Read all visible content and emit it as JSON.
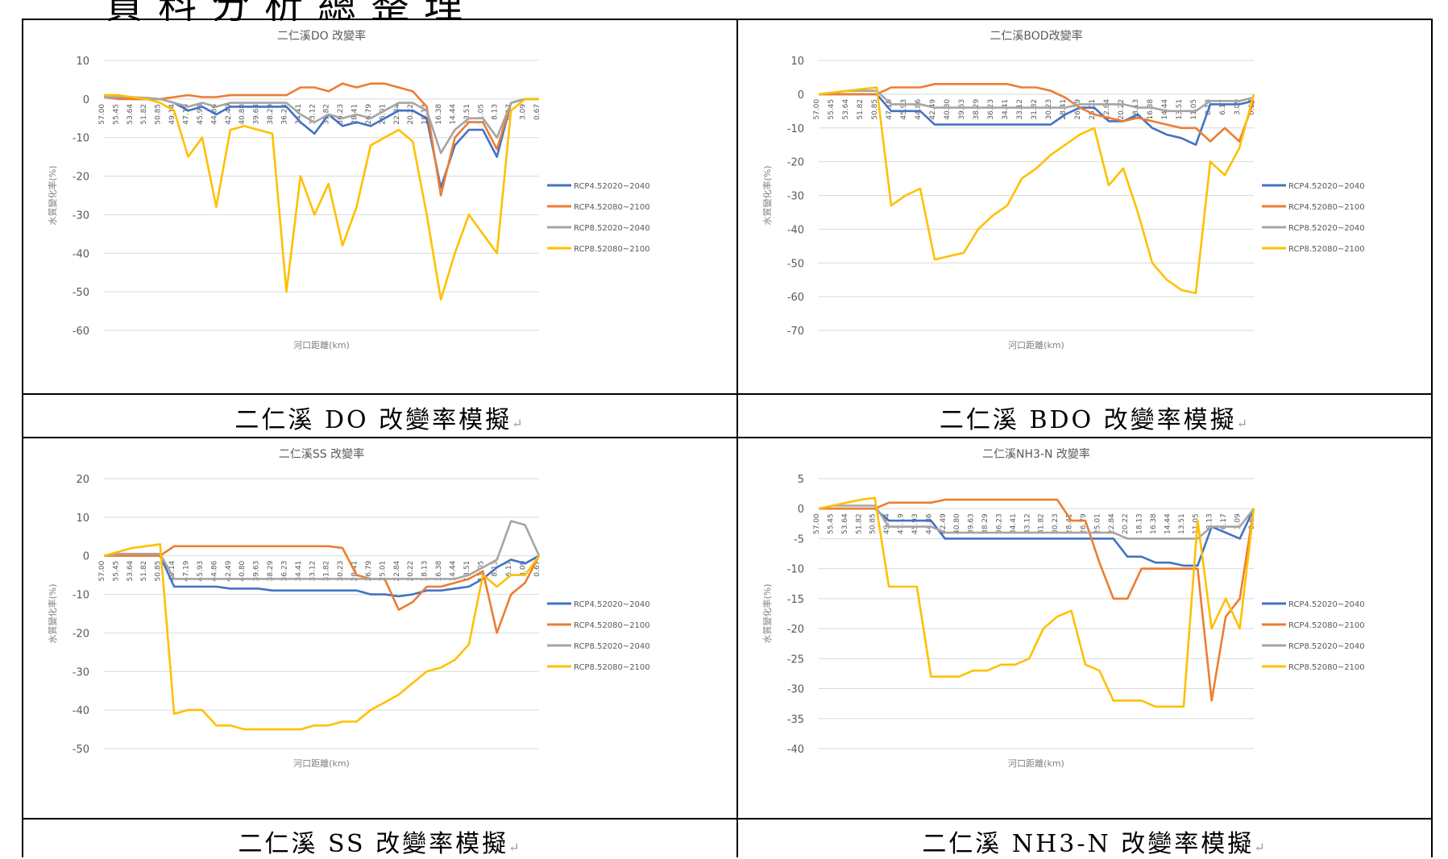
{
  "header_text": "資料分析總整理",
  "charts": [
    {
      "id": "do",
      "title": "二仁溪DO 改變率",
      "ylabel": "水質變化率(%)",
      "xlabel": "河口距離(km)",
      "caption": "二仁溪 DO 改變率模擬",
      "ylim": [
        -60,
        10
      ],
      "yticks": [
        10,
        0,
        -10,
        -20,
        -30,
        -40,
        -50,
        -60
      ]
    },
    {
      "id": "bod",
      "title": "二仁溪BOD改變率",
      "ylabel": "水質變化率(%)",
      "xlabel": "河口距離(km)",
      "caption": "二仁溪 BDO 改變率模擬",
      "ylim": [
        -70,
        10
      ],
      "yticks": [
        10,
        0,
        -10,
        -20,
        -30,
        -40,
        -50,
        -60,
        -70
      ]
    },
    {
      "id": "ss",
      "title": "二仁溪SS 改變率",
      "ylabel": "水質變化率(%)",
      "xlabel": "河口距離(km)",
      "caption": "二仁溪 SS 改變率模擬",
      "ylim": [
        -50,
        20
      ],
      "yticks": [
        20,
        10,
        0,
        -10,
        -20,
        -30,
        -40,
        -50
      ]
    },
    {
      "id": "nh3",
      "title": "二仁溪NH3-N 改變率",
      "ylabel": "水質變化率(%)",
      "xlabel": "河口距離(km)",
      "caption": "二仁溪 NH3-N 改變率模擬",
      "ylim": [
        -40,
        5
      ],
      "yticks": [
        5,
        0,
        -5,
        -10,
        -15,
        -20,
        -25,
        -30,
        -35,
        -40
      ]
    }
  ],
  "chart_data": [
    {
      "type": "line",
      "title": "二仁溪DO 改變率",
      "xlabel": "河口距離(km)",
      "ylabel": "水質變化率(%)",
      "ylim": [
        -60,
        10
      ],
      "x": [
        "57.00",
        "55.45",
        "53.64",
        "51.82",
        "50.85",
        "49.14",
        "47.19",
        "45.93",
        "44.86",
        "42.49",
        "40.80",
        "39.63",
        "38.29",
        "36.23",
        "34.41",
        "33.12",
        "31.82",
        "30.23",
        "28.41",
        "26.79",
        "25.01",
        "22.84",
        "20.22",
        "18.13",
        "16.38",
        "14.44",
        "13.51",
        "11.05",
        "8.13",
        "6.17",
        "3.09",
        "0.67"
      ],
      "series": [
        {
          "name": "RCP4.52020~2040",
          "color": "#4472C4",
          "values": [
            0.5,
            0.3,
            0,
            0,
            0,
            -1,
            -3,
            -2,
            -4,
            -2,
            -2,
            -2,
            -2,
            -2,
            -6,
            -9,
            -4,
            -7,
            -6,
            -7,
            -5,
            -3,
            -3,
            -5,
            -23,
            -12,
            -8,
            -8,
            -15,
            -1,
            0,
            0
          ]
        },
        {
          "name": "RCP4.52080~2100",
          "color": "#ED7D31",
          "values": [
            0.5,
            0,
            0,
            0,
            0,
            0.5,
            1,
            0.5,
            0.5,
            1,
            1,
            1,
            1,
            1,
            3,
            3,
            2,
            4,
            3,
            4,
            4,
            3,
            2,
            -2,
            -25,
            -10,
            -6,
            -6,
            -13,
            -1,
            0,
            0
          ]
        },
        {
          "name": "RCP8.52020~2040",
          "color": "#A5A5A5",
          "values": [
            0.5,
            0.5,
            0.5,
            0.3,
            0,
            -1,
            -2,
            -1,
            -2,
            -1,
            -1,
            -1,
            -1,
            -1,
            -4,
            -6,
            -4,
            -5,
            -4,
            -5,
            -3,
            -1,
            -1,
            -3,
            -14,
            -8,
            -5,
            -5,
            -10,
            -1,
            0,
            0
          ]
        },
        {
          "name": "RCP8.52080~2100",
          "color": "#FFC000",
          "values": [
            1,
            1,
            0.5,
            0,
            -1,
            -3,
            -15,
            -10,
            -28,
            -8,
            -7,
            -8,
            -9,
            -50,
            -20,
            -30,
            -22,
            -38,
            -28,
            -12,
            -10,
            -8,
            -11,
            -30,
            -52,
            -40,
            -30,
            -35,
            -40,
            -3,
            0,
            0
          ]
        }
      ]
    },
    {
      "type": "line",
      "title": "二仁溪BOD改變率",
      "xlabel": "河口距離(km)",
      "ylabel": "水質變化率(%)",
      "ylim": [
        -70,
        10
      ],
      "x": [
        "57.00",
        "55.45",
        "53.64",
        "51.82",
        "50.85",
        "47.19",
        "45.93",
        "44.86",
        "42.49",
        "40.80",
        "39.63",
        "38.29",
        "36.23",
        "34.41",
        "33.12",
        "31.82",
        "30.23",
        "28.41",
        "26.79",
        "25.01",
        "22.84",
        "20.22",
        "18.13",
        "16.38",
        "14.44",
        "13.51",
        "11.05",
        "8.13",
        "6.17",
        "3.09",
        "0.67"
      ],
      "series": [
        {
          "name": "RCP4.52020~2040",
          "color": "#4472C4",
          "values": [
            0,
            0,
            0,
            0,
            0,
            -5,
            -5,
            -5,
            -9,
            -9,
            -9,
            -9,
            -9,
            -9,
            -9,
            -9,
            -9,
            -6,
            -4,
            -4,
            -8,
            -8,
            -6,
            -10,
            -12,
            -13,
            -15,
            -3,
            -3,
            -3,
            -2
          ]
        },
        {
          "name": "RCP4.52080~2100",
          "color": "#ED7D31",
          "values": [
            0,
            0,
            0,
            0,
            0,
            2,
            2,
            2,
            3,
            3,
            3,
            3,
            3,
            3,
            2,
            2,
            1,
            -1,
            -4,
            -6,
            -7,
            -8,
            -7,
            -8,
            -9,
            -10,
            -10,
            -14,
            -10,
            -14,
            -2
          ]
        },
        {
          "name": "RCP8.52020~2040",
          "color": "#A5A5A5",
          "values": [
            0,
            0.5,
            1,
            1,
            1,
            -3,
            -3,
            -3,
            -4,
            -4,
            -4,
            -4,
            -4,
            -4,
            -4,
            -4,
            -4,
            -4,
            -3,
            -3,
            -3,
            -3,
            -4,
            -4,
            -5,
            -5,
            -5,
            -2,
            -2,
            -2,
            -1
          ]
        },
        {
          "name": "RCP8.52080~2100",
          "color": "#FFC000",
          "values": [
            0,
            0.5,
            1,
            1.5,
            2,
            -33,
            -30,
            -28,
            -49,
            -48,
            -47,
            -40,
            -36,
            -33,
            -25,
            -22,
            -18,
            -15,
            -12,
            -10,
            -27,
            -22,
            -35,
            -50,
            -55,
            -58,
            -59,
            -20,
            -24,
            -16,
            0
          ]
        }
      ]
    },
    {
      "type": "line",
      "title": "二仁溪SS 改變率",
      "xlabel": "河口距離(km)",
      "ylabel": "水質變化率(%)",
      "ylim": [
        -50,
        20
      ],
      "x": [
        "57.00",
        "55.45",
        "53.64",
        "51.82",
        "50.85",
        "49.14",
        "47.19",
        "45.93",
        "44.86",
        "42.49",
        "40.80",
        "39.63",
        "38.29",
        "36.23",
        "34.41",
        "33.12",
        "31.82",
        "30.23",
        "28.41",
        "26.79",
        "25.01",
        "22.84",
        "20.22",
        "18.13",
        "16.38",
        "14.44",
        "13.51",
        "11.05",
        "8.13",
        "6.17",
        "3.09",
        "0.67"
      ],
      "series": [
        {
          "name": "RCP4.52020~2040",
          "color": "#4472C4",
          "values": [
            0,
            0,
            0,
            0,
            0,
            -8,
            -8,
            -8,
            -8,
            -8.5,
            -8.5,
            -8.5,
            -9,
            -9,
            -9,
            -9,
            -9,
            -9,
            -9,
            -10,
            -10,
            -10.5,
            -10,
            -9,
            -9,
            -8.5,
            -8,
            -6,
            -3,
            -1,
            -2,
            0
          ]
        },
        {
          "name": "RCP4.52080~2100",
          "color": "#ED7D31",
          "values": [
            0,
            0,
            0,
            0,
            0,
            2.5,
            2.5,
            2.5,
            2.5,
            2.5,
            2.5,
            2.5,
            2.5,
            2.5,
            2.5,
            2.5,
            2.5,
            2,
            -5,
            -6,
            -6,
            -14,
            -12,
            -8,
            -8,
            -7,
            -6,
            -4,
            -20,
            -10,
            -7,
            0
          ]
        },
        {
          "name": "RCP8.52020~2040",
          "color": "#A5A5A5",
          "values": [
            0,
            0.5,
            0.5,
            0.5,
            0.5,
            -6,
            -6,
            -6,
            -6,
            -6,
            -6,
            -6,
            -6,
            -6,
            -6,
            -6,
            -6,
            -6,
            -6,
            -6,
            -6,
            -6,
            -6,
            -6,
            -6,
            -6,
            -5,
            -3,
            -1,
            9,
            8,
            0
          ]
        },
        {
          "name": "RCP8.52080~2100",
          "color": "#FFC000",
          "values": [
            0,
            1,
            2,
            2.5,
            3,
            -41,
            -40,
            -40,
            -44,
            -44,
            -45,
            -45,
            -45,
            -45,
            -45,
            -44,
            -44,
            -43,
            -43,
            -40,
            -38,
            -36,
            -33,
            -30,
            -29,
            -27,
            -23,
            -5,
            -8,
            -5,
            -5,
            0
          ]
        }
      ]
    },
    {
      "type": "line",
      "title": "二仁溪NH3-N 改變率",
      "xlabel": "河口距離(km)",
      "ylabel": "水質變化率(%)",
      "ylim": [
        -40,
        5
      ],
      "x": [
        "57.00",
        "55.45",
        "53.64",
        "51.82",
        "50.85",
        "49.14",
        "47.19",
        "45.93",
        "44.86",
        "42.49",
        "40.80",
        "39.63",
        "38.29",
        "36.23",
        "34.41",
        "33.12",
        "31.82",
        "30.23",
        "28.41",
        "26.79",
        "25.01",
        "22.84",
        "20.22",
        "18.13",
        "16.38",
        "14.44",
        "13.51",
        "11.05",
        "8.13",
        "6.17",
        "3.09",
        "0.67"
      ],
      "series": [
        {
          "name": "RCP4.52020~2040",
          "color": "#4472C4",
          "values": [
            0,
            0,
            0,
            0,
            0,
            -2,
            -2,
            -2,
            -2,
            -5,
            -5,
            -5,
            -5,
            -5,
            -5,
            -5,
            -5,
            -5,
            -5,
            -5,
            -5,
            -5,
            -8,
            -8,
            -9,
            -9,
            -9.5,
            -9.5,
            -3,
            -4,
            -5,
            0
          ]
        },
        {
          "name": "RCP4.52080~2100",
          "color": "#ED7D31",
          "values": [
            0,
            0,
            0,
            0,
            0,
            1,
            1,
            1,
            1,
            1.5,
            1.5,
            1.5,
            1.5,
            1.5,
            1.5,
            1.5,
            1.5,
            1.5,
            -2,
            -2,
            -9,
            -15,
            -15,
            -10,
            -10,
            -10,
            -10,
            -10,
            -32,
            -18,
            -15,
            0
          ]
        },
        {
          "name": "RCP8.52020~2040",
          "color": "#A5A5A5",
          "values": [
            0,
            0.5,
            0.5,
            0.5,
            0.5,
            -3,
            -3,
            -3,
            -3,
            -4,
            -4,
            -4,
            -4,
            -4,
            -4,
            -4,
            -4,
            -4,
            -4,
            -4,
            -4,
            -4,
            -5,
            -5,
            -5,
            -5,
            -5,
            -5,
            -3,
            -3,
            -3,
            0
          ]
        },
        {
          "name": "RCP8.52080~2100",
          "color": "#FFC000",
          "values": [
            0,
            0.5,
            1,
            1.5,
            1.8,
            -13,
            -13,
            -13,
            -28,
            -28,
            -28,
            -27,
            -27,
            -26,
            -26,
            -25,
            -20,
            -18,
            -17,
            -26,
            -27,
            -32,
            -32,
            -32,
            -33,
            -33,
            -33,
            -2,
            -20,
            -15,
            -20,
            0
          ]
        }
      ]
    }
  ]
}
